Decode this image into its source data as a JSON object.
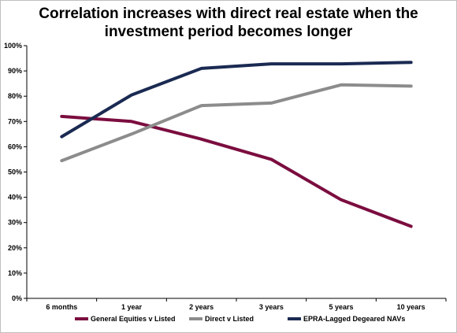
{
  "chart_data": {
    "type": "line",
    "title_lines": [
      "Correlation increases with direct real estate when the",
      "investment period becomes longer"
    ],
    "categories": [
      "6 months",
      "1 year",
      "2 years",
      "3 years",
      "5 years",
      "10 years"
    ],
    "y_ticks": [
      "0%",
      "10%",
      "20%",
      "30%",
      "40%",
      "50%",
      "60%",
      "70%",
      "80%",
      "90%",
      "100%"
    ],
    "ylim": [
      0,
      100
    ],
    "grid": false,
    "legend_position": "bottom",
    "series": [
      {
        "name": "General Equities v Listed",
        "color": "#7b0d3f",
        "values": [
          72,
          70,
          63,
          55,
          39,
          28.5
        ]
      },
      {
        "name": "Direct v Listed",
        "color": "#8c8c8c",
        "values": [
          54.5,
          65,
          76.3,
          77.3,
          84.5,
          84
        ]
      },
      {
        "name": "EPRA-Lagged Degeared NAVs",
        "color": "#1a2a52",
        "values": [
          64,
          80.5,
          91,
          92.8,
          92.8,
          93.4
        ]
      }
    ]
  }
}
